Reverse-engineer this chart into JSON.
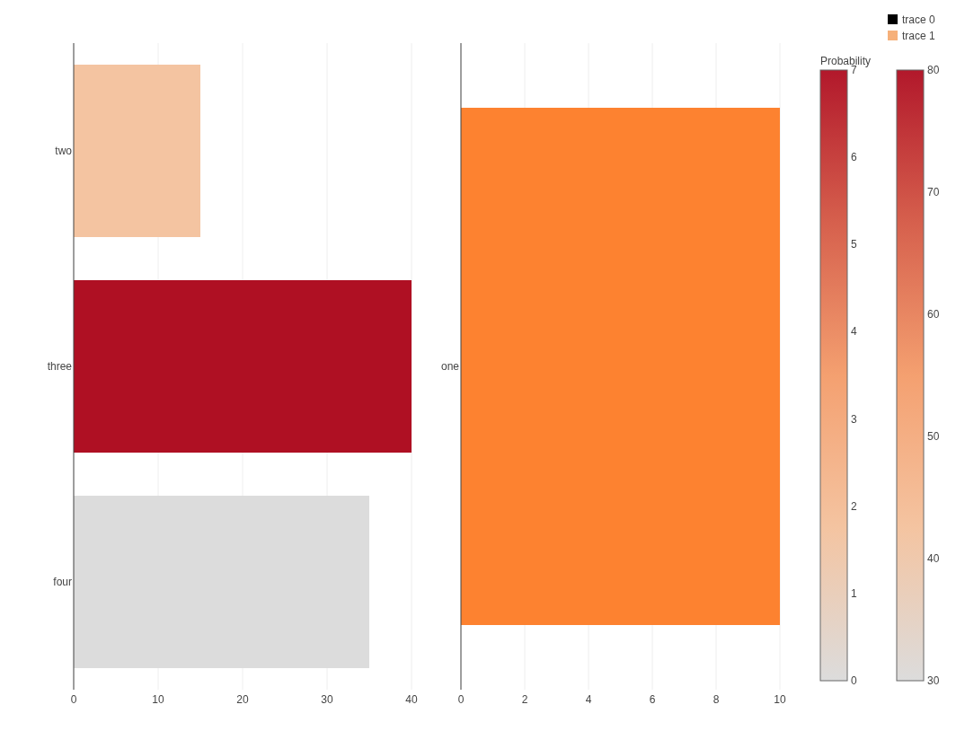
{
  "chart_data": [
    {
      "type": "bar",
      "orientation": "horizontal",
      "categories": [
        "two",
        "three",
        "four"
      ],
      "series": [
        {
          "name": "trace 0",
          "color": "#000000",
          "colors": [
            "#f4c4a1",
            "#af1023",
            "#dcdcdc"
          ],
          "values": [
            15,
            40,
            35
          ]
        }
      ],
      "xlim": [
        0,
        40
      ],
      "xticks": [
        0,
        10,
        20,
        30,
        40
      ],
      "grid": "x",
      "legend": "top right",
      "clim": [
        30,
        80
      ],
      "cticks": [
        30,
        40,
        50,
        60,
        70,
        80
      ]
    },
    {
      "type": "bar",
      "orientation": "horizontal",
      "categories": [
        "one"
      ],
      "series": [
        {
          "name": "trace 1",
          "color": "#f6b07a",
          "colors": [
            "#fd8230"
          ],
          "values": [
            10
          ]
        }
      ],
      "xlim": [
        0,
        10
      ],
      "xticks": [
        0,
        2,
        4,
        6,
        8,
        10
      ],
      "grid": "x",
      "legend": "top right",
      "clabel": "Probability",
      "clim": [
        0,
        7
      ],
      "cticks": [
        0,
        1,
        2,
        3,
        4,
        5,
        6,
        7
      ]
    }
  ]
}
